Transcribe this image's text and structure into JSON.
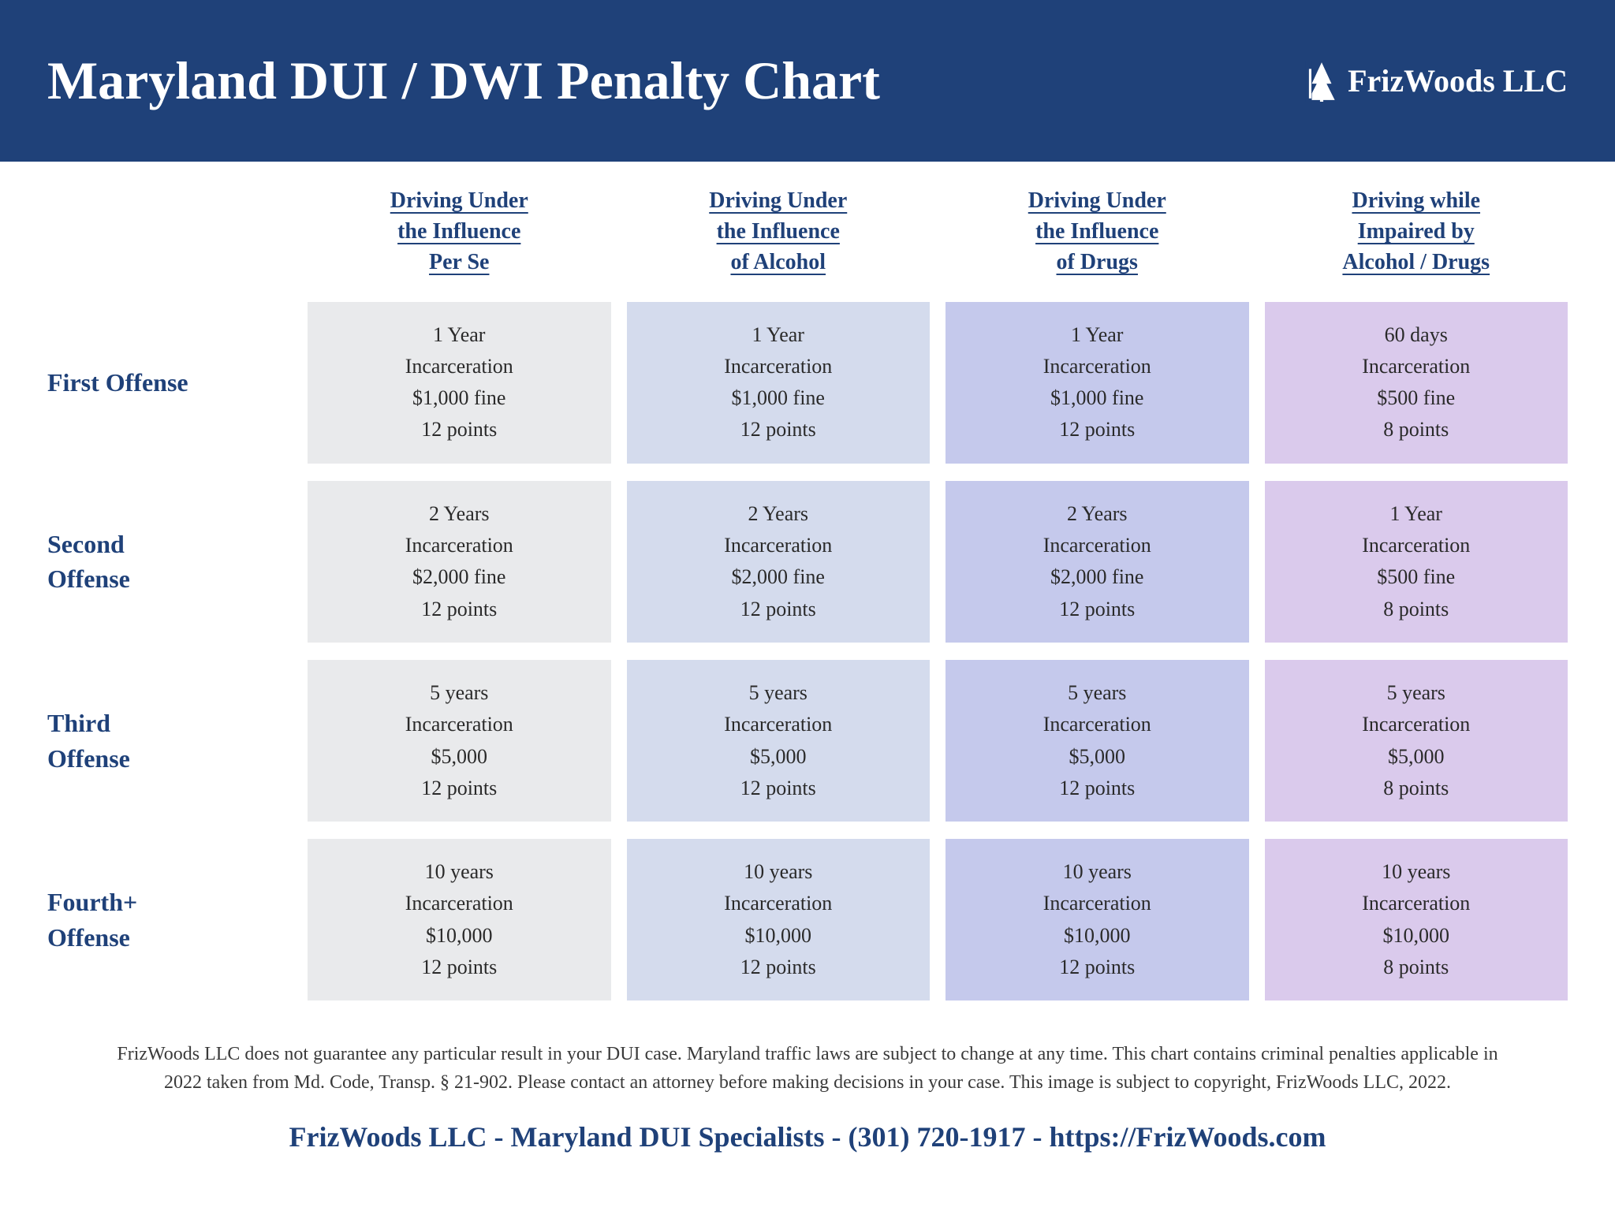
{
  "header": {
    "title": "Maryland DUI / DWI Penalty Chart",
    "brand": "FrizWoods LLC"
  },
  "colors": {
    "header_bg": "#1f4179",
    "header_text": "#ffffff",
    "label_text": "#1f4179",
    "cell_text": "#2a2a2a",
    "col_bg": [
      "#e9eaec",
      "#d4dbed",
      "#c5c9ec",
      "#dacaec"
    ]
  },
  "columns": [
    "Driving Under\nthe Influence\nPer Se",
    "Driving Under\nthe Influence\nof Alcohol",
    "Driving Under\nthe Influence\nof Drugs",
    "Driving while\nImpaired by\nAlcohol / Drugs"
  ],
  "rows": [
    {
      "label": "First Offense",
      "cells": [
        [
          "1 Year",
          "Incarceration",
          "$1,000 fine",
          "12 points"
        ],
        [
          "1 Year",
          "Incarceration",
          "$1,000 fine",
          "12 points"
        ],
        [
          "1 Year",
          "Incarceration",
          "$1,000 fine",
          "12 points"
        ],
        [
          "60 days",
          "Incarceration",
          "$500 fine",
          "8 points"
        ]
      ]
    },
    {
      "label": "Second\nOffense",
      "cells": [
        [
          "2 Years",
          "Incarceration",
          "$2,000 fine",
          "12 points"
        ],
        [
          "2 Years",
          "Incarceration",
          "$2,000 fine",
          "12 points"
        ],
        [
          "2 Years",
          "Incarceration",
          "$2,000 fine",
          "12 points"
        ],
        [
          "1 Year",
          "Incarceration",
          "$500 fine",
          "8 points"
        ]
      ]
    },
    {
      "label": "Third\nOffense",
      "cells": [
        [
          "5 years",
          "Incarceration",
          "$5,000",
          "12 points"
        ],
        [
          "5 years",
          "Incarceration",
          "$5,000",
          "12 points"
        ],
        [
          "5 years",
          "Incarceration",
          "$5,000",
          "12 points"
        ],
        [
          "5 years",
          "Incarceration",
          "$5,000",
          "8 points"
        ]
      ]
    },
    {
      "label": "Fourth+\nOffense",
      "cells": [
        [
          "10 years",
          "Incarceration",
          "$10,000",
          "12 points"
        ],
        [
          "10 years",
          "Incarceration",
          "$10,000",
          "12 points"
        ],
        [
          "10 years",
          "Incarceration",
          "$10,000",
          "12 points"
        ],
        [
          "10 years",
          "Incarceration",
          "$10,000",
          "8 points"
        ]
      ]
    }
  ],
  "disclaimer": "FrizWoods LLC does not guarantee any particular result in your DUI case. Maryland traffic laws are subject to change at any time. This chart contains criminal penalties applicable in 2022 taken from Md. Code, Transp. § 21-902. Please contact an attorney before making decisions in your case. This image is subject to copyright, FrizWoods LLC, 2022.",
  "footer": "FrizWoods LLC - Maryland DUI Specialists - (301) 720-1917 - https://FrizWoods.com"
}
